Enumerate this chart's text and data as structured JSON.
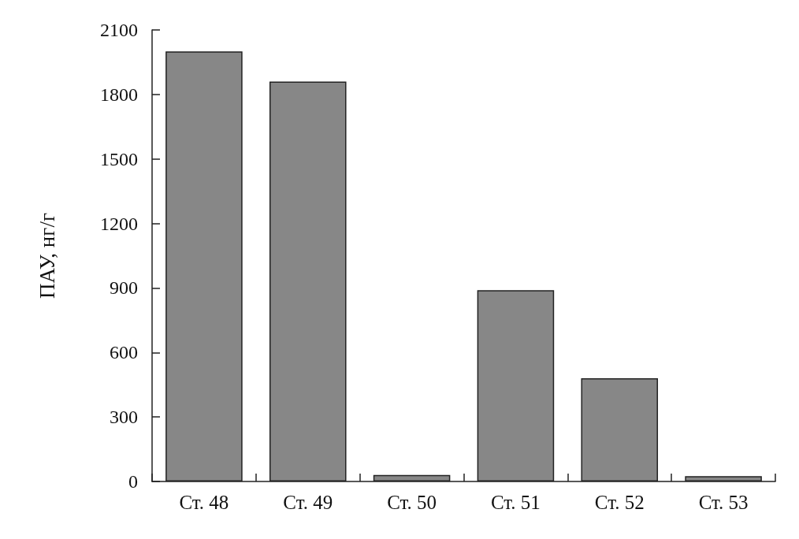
{
  "chart_data": {
    "type": "bar",
    "ylabel": "ПАУ, нг/г",
    "categories": [
      "Ст. 48",
      "Ст. 49",
      "Ст. 50",
      "Ст. 51",
      "Ст. 52",
      "Ст. 53"
    ],
    "values": [
      2000,
      1860,
      30,
      890,
      480,
      25
    ],
    "color": "#878787",
    "ylim": [
      0,
      2100
    ],
    "yticks": [
      0,
      300,
      600,
      900,
      1200,
      1500,
      1800,
      2100
    ],
    "grid": false
  }
}
